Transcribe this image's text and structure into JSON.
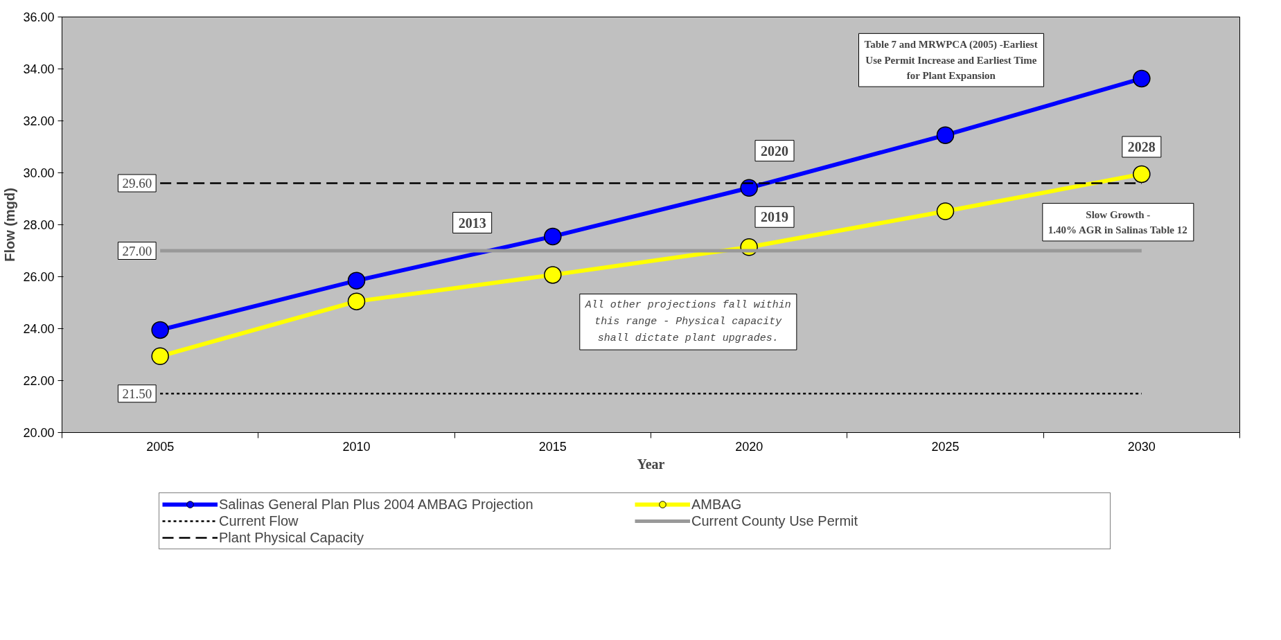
{
  "chart_data": {
    "type": "line",
    "xlabel": "Year",
    "ylabel": "Flow (mgd)",
    "categories": [
      "2005",
      "2010",
      "2015",
      "2020",
      "2025",
      "2030"
    ],
    "ylim": [
      20,
      36
    ],
    "yticks": [
      {
        "value": 20,
        "label": "20.00"
      },
      {
        "value": 22,
        "label": "22.00"
      },
      {
        "value": 24,
        "label": "24.00"
      },
      {
        "value": 26,
        "label": "26.00"
      },
      {
        "value": 28,
        "label": "28.00"
      },
      {
        "value": 30,
        "label": "30.00"
      },
      {
        "value": 32,
        "label": "32.00"
      },
      {
        "value": 34,
        "label": "34.00"
      },
      {
        "value": 36,
        "label": "36.00"
      }
    ],
    "series": [
      {
        "name": "Salinas General Plan Plus 2004 AMBAG Projection",
        "color": "#0000ff",
        "marker": "circle",
        "line_style": "solid",
        "values": [
          23.95,
          25.85,
          27.55,
          29.42,
          31.45,
          33.63
        ]
      },
      {
        "name": "AMBAG",
        "color": "#ffff00",
        "marker": "circle",
        "line_style": "solid",
        "values": [
          22.94,
          25.05,
          26.07,
          27.14,
          28.52,
          29.95
        ]
      },
      {
        "name": "Current Flow",
        "color": "#000000",
        "marker": "none",
        "line_style": "dotted",
        "values": [
          21.5,
          21.5,
          21.5,
          21.5,
          21.5,
          21.5
        ],
        "value_labels": [
          "21.50",
          null,
          null,
          null,
          null,
          null
        ]
      },
      {
        "name": "Current County Use Permit",
        "color": "#999999",
        "marker": "none",
        "line_style": "solid",
        "values": [
          27.0,
          27.0,
          27.0,
          27.0,
          27.0,
          27.0
        ],
        "value_labels": [
          "27.00",
          null,
          null,
          null,
          null,
          null
        ]
      },
      {
        "name": "Plant Physical Capacity",
        "color": "#000000",
        "marker": "none",
        "line_style": "dashed",
        "values": [
          29.6,
          29.6,
          29.6,
          29.6,
          29.6,
          29.6
        ],
        "value_labels": [
          "29.60",
          null,
          null,
          null,
          null,
          null
        ]
      }
    ],
    "annotations": [
      "Table 7 and MRWPCA (2005) -Earliest\nUse Permit Increase and Earliest Time\nfor Plant Expansion",
      "2020",
      "2028",
      "2013",
      "2019",
      "Slow Growth -\n1.40% AGR in Salinas Table 12",
      "All other projections fall within\nthis range - Physical capacity\nshall dictate plant upgrades."
    ],
    "grid": false,
    "legend": "bottom"
  }
}
